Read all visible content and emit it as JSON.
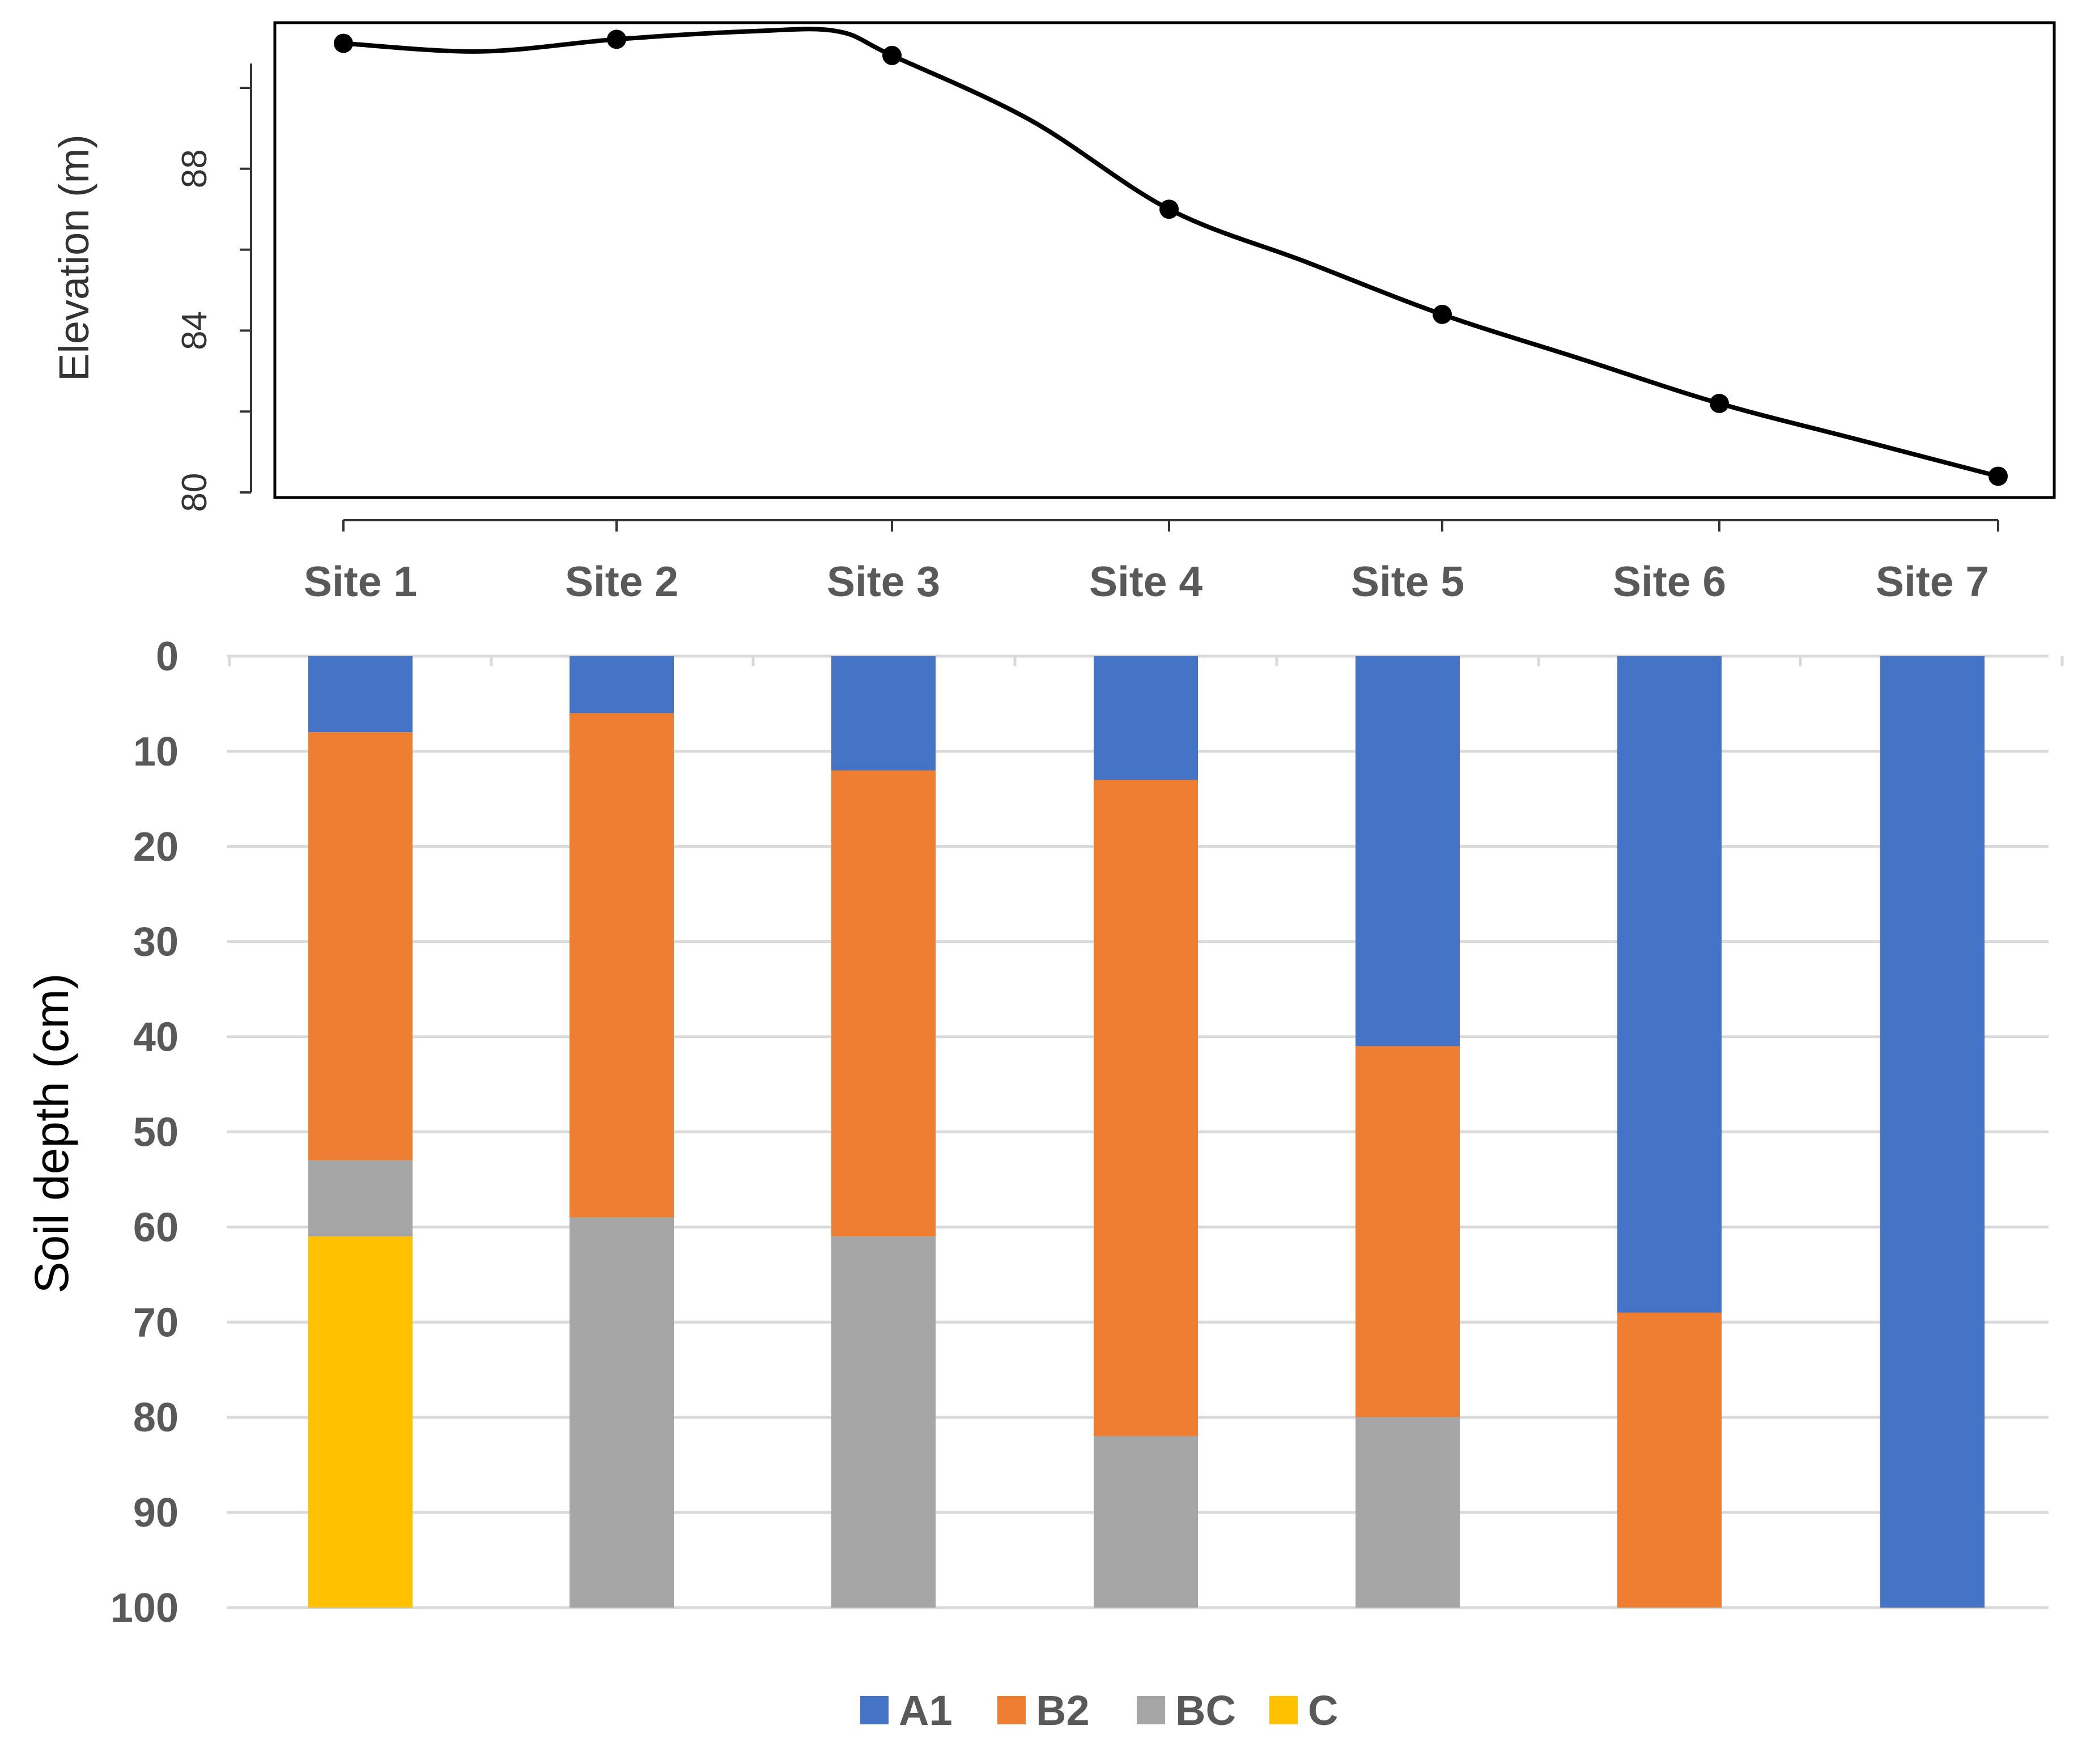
{
  "chart_data": [
    {
      "type": "line",
      "title": "",
      "xlabel": "",
      "ylabel": "Elevation (m)",
      "categories": [
        "Site 1",
        "Site 2",
        "Site 3",
        "Site 4",
        "Site 5",
        "Site 6",
        "Site 7"
      ],
      "series": [
        {
          "name": "Elevation",
          "values": [
            91.1,
            91.2,
            90.8,
            87.0,
            84.4,
            82.2,
            80.4
          ],
          "color": "#000000",
          "intermediate_profile": [
            [
              0.5,
              90.9
            ],
            [
              1.5,
              91.4
            ],
            [
              1.8,
              91.4
            ],
            [
              2.5,
              89.2
            ],
            [
              3.5,
              85.7
            ],
            [
              4.5,
              83.3
            ],
            [
              5.5,
              81.3
            ]
          ]
        }
      ],
      "yticks": [
        80,
        84,
        88
      ],
      "ylim": [
        79.9,
        91.7
      ],
      "grid": false,
      "xtick_labels_shared": true
    },
    {
      "type": "bar",
      "stacked": true,
      "orientation": "vertical-reversed-axis",
      "title": "",
      "xlabel": "",
      "ylabel": "Soil depth (cm)",
      "categories": [
        "Site 1",
        "Site 2",
        "Site 3",
        "Site 4",
        "Site 5",
        "Site 6",
        "Site 7"
      ],
      "series": [
        {
          "name": "A1",
          "color": "#4472C4",
          "values": [
            8,
            6,
            12,
            13,
            41,
            69,
            100
          ]
        },
        {
          "name": "B2",
          "color": "#ED7D31",
          "values": [
            45,
            53,
            49,
            69,
            39,
            31,
            0
          ]
        },
        {
          "name": "BC",
          "color": "#A5A5A5",
          "values": [
            8,
            41,
            39,
            18,
            20,
            0,
            0
          ]
        },
        {
          "name": "C",
          "color": "#FFC000",
          "values": [
            39,
            0,
            0,
            0,
            0,
            0,
            0
          ]
        }
      ],
      "yticks": [
        0,
        10,
        20,
        30,
        40,
        50,
        60,
        70,
        80,
        90,
        100
      ],
      "ylim": [
        0,
        100
      ],
      "grid": true,
      "legend": "bottom-center"
    }
  ]
}
